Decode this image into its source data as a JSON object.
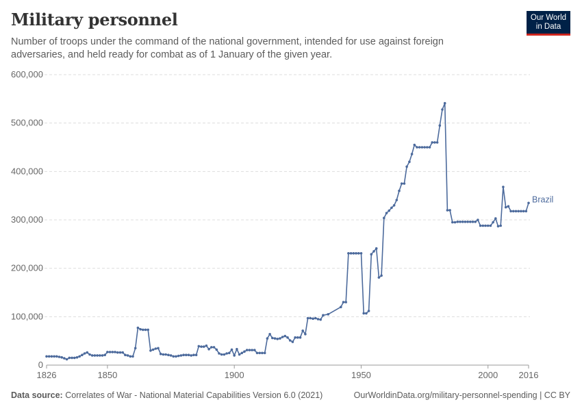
{
  "header": {
    "title": "Military personnel",
    "subtitle": "Number of troops under the command of the national government, intended for use against foreign adversaries, and held ready for combat as of 1 January of the given year."
  },
  "logo": {
    "line1": "Our World",
    "line2": "in Data"
  },
  "footer": {
    "source_label": "Data source:",
    "source_text": "Correlates of War - National Material Capabilities Version 6.0 (2021)",
    "right_text": "OurWorldinData.org/military-personnel-spending | CC BY"
  },
  "colors": {
    "series": "#4c6a9c",
    "grid": "#dddddd",
    "text": "#5b5b5b",
    "brand": "#002147",
    "brand_accent": "#ce261e"
  },
  "chart_data": {
    "type": "line",
    "title": "Military personnel",
    "xlabel": "",
    "ylabel": "",
    "xlim": [
      1826,
      2016
    ],
    "ylim": [
      0,
      600000
    ],
    "y_ticks": [
      0,
      100000,
      200000,
      300000,
      400000,
      500000,
      600000
    ],
    "y_tick_labels": [
      "0",
      "100,000",
      "200,000",
      "300,000",
      "400,000",
      "500,000",
      "600,000"
    ],
    "x_ticks": [
      1826,
      1850,
      1900,
      1950,
      2000,
      2016
    ],
    "x_tick_labels": [
      "1826",
      "1850",
      "1900",
      "1950",
      "2000",
      "2016"
    ],
    "grid": true,
    "legend": "end-of-line label",
    "series": [
      {
        "name": "Brazil",
        "points": [
          [
            1826,
            18000
          ],
          [
            1827,
            18000
          ],
          [
            1828,
            18000
          ],
          [
            1829,
            18000
          ],
          [
            1830,
            18000
          ],
          [
            1831,
            17000
          ],
          [
            1832,
            16000
          ],
          [
            1833,
            14000
          ],
          [
            1834,
            12000
          ],
          [
            1835,
            15000
          ],
          [
            1836,
            15000
          ],
          [
            1837,
            15000
          ],
          [
            1838,
            16000
          ],
          [
            1839,
            18000
          ],
          [
            1840,
            21000
          ],
          [
            1841,
            24000
          ],
          [
            1842,
            26000
          ],
          [
            1843,
            22000
          ],
          [
            1844,
            20000
          ],
          [
            1845,
            20000
          ],
          [
            1846,
            20000
          ],
          [
            1847,
            20000
          ],
          [
            1848,
            20000
          ],
          [
            1849,
            21000
          ],
          [
            1850,
            27000
          ],
          [
            1851,
            27000
          ],
          [
            1852,
            27000
          ],
          [
            1853,
            27000
          ],
          [
            1854,
            26000
          ],
          [
            1855,
            26000
          ],
          [
            1856,
            26000
          ],
          [
            1857,
            21000
          ],
          [
            1858,
            20000
          ],
          [
            1859,
            18000
          ],
          [
            1860,
            18000
          ],
          [
            1861,
            35000
          ],
          [
            1862,
            77000
          ],
          [
            1863,
            74000
          ],
          [
            1864,
            73000
          ],
          [
            1865,
            73000
          ],
          [
            1866,
            73000
          ],
          [
            1867,
            30000
          ],
          [
            1868,
            32000
          ],
          [
            1869,
            34000
          ],
          [
            1870,
            35000
          ],
          [
            1871,
            23000
          ],
          [
            1872,
            22000
          ],
          [
            1873,
            22000
          ],
          [
            1874,
            21000
          ],
          [
            1875,
            20000
          ],
          [
            1876,
            18000
          ],
          [
            1877,
            18000
          ],
          [
            1878,
            19000
          ],
          [
            1879,
            20000
          ],
          [
            1880,
            21000
          ],
          [
            1881,
            21000
          ],
          [
            1882,
            21000
          ],
          [
            1883,
            20000
          ],
          [
            1884,
            21000
          ],
          [
            1885,
            21000
          ],
          [
            1886,
            39000
          ],
          [
            1887,
            38000
          ],
          [
            1888,
            38000
          ],
          [
            1889,
            40000
          ],
          [
            1890,
            33000
          ],
          [
            1891,
            37000
          ],
          [
            1892,
            37000
          ],
          [
            1893,
            32000
          ],
          [
            1894,
            24000
          ],
          [
            1895,
            22000
          ],
          [
            1896,
            22000
          ],
          [
            1897,
            24000
          ],
          [
            1898,
            25000
          ],
          [
            1899,
            32000
          ],
          [
            1900,
            20000
          ],
          [
            1901,
            33000
          ],
          [
            1902,
            22000
          ],
          [
            1903,
            25000
          ],
          [
            1904,
            28000
          ],
          [
            1905,
            31000
          ],
          [
            1906,
            31000
          ],
          [
            1907,
            31000
          ],
          [
            1908,
            31000
          ],
          [
            1909,
            25000
          ],
          [
            1910,
            25000
          ],
          [
            1911,
            25000
          ],
          [
            1912,
            25000
          ],
          [
            1913,
            55000
          ],
          [
            1914,
            64000
          ],
          [
            1915,
            56000
          ],
          [
            1916,
            55000
          ],
          [
            1917,
            54000
          ],
          [
            1918,
            55000
          ],
          [
            1919,
            58000
          ],
          [
            1920,
            60000
          ],
          [
            1921,
            57000
          ],
          [
            1922,
            51000
          ],
          [
            1923,
            48000
          ],
          [
            1924,
            57000
          ],
          [
            1925,
            57000
          ],
          [
            1926,
            57000
          ],
          [
            1927,
            71000
          ],
          [
            1928,
            64000
          ],
          [
            1929,
            97000
          ],
          [
            1930,
            97000
          ],
          [
            1931,
            96000
          ],
          [
            1932,
            97000
          ],
          [
            1933,
            95000
          ],
          [
            1934,
            94000
          ],
          [
            1935,
            103000
          ],
          [
            1937,
            105000
          ],
          [
            1942,
            120000
          ],
          [
            1943,
            130000
          ],
          [
            1944,
            130000
          ],
          [
            1945,
            231000
          ],
          [
            1946,
            231000
          ],
          [
            1947,
            231000
          ],
          [
            1948,
            231000
          ],
          [
            1949,
            231000
          ],
          [
            1950,
            231000
          ],
          [
            1951,
            107000
          ],
          [
            1952,
            107000
          ],
          [
            1953,
            112000
          ],
          [
            1954,
            229000
          ],
          [
            1955,
            235000
          ],
          [
            1956,
            241000
          ],
          [
            1957,
            181000
          ],
          [
            1958,
            185000
          ],
          [
            1959,
            304000
          ],
          [
            1960,
            314000
          ],
          [
            1961,
            319000
          ],
          [
            1962,
            325000
          ],
          [
            1963,
            330000
          ],
          [
            1964,
            341000
          ],
          [
            1965,
            360000
          ],
          [
            1966,
            375000
          ],
          [
            1967,
            375000
          ],
          [
            1968,
            410000
          ],
          [
            1969,
            420000
          ],
          [
            1970,
            436000
          ],
          [
            1971,
            455000
          ],
          [
            1972,
            450000
          ],
          [
            1973,
            450000
          ],
          [
            1974,
            450000
          ],
          [
            1975,
            450000
          ],
          [
            1976,
            450000
          ],
          [
            1977,
            450000
          ],
          [
            1978,
            460000
          ],
          [
            1979,
            460000
          ],
          [
            1980,
            460000
          ],
          [
            1981,
            495000
          ],
          [
            1982,
            528000
          ],
          [
            1983,
            541000
          ],
          [
            1984,
            320000
          ],
          [
            1985,
            320000
          ],
          [
            1986,
            295000
          ],
          [
            1987,
            295000
          ],
          [
            1988,
            296000
          ],
          [
            1989,
            296000
          ],
          [
            1990,
            296000
          ],
          [
            1991,
            296000
          ],
          [
            1992,
            296000
          ],
          [
            1993,
            296000
          ],
          [
            1994,
            296000
          ],
          [
            1995,
            296000
          ],
          [
            1996,
            300000
          ],
          [
            1997,
            288000
          ],
          [
            1998,
            288000
          ],
          [
            1999,
            288000
          ],
          [
            2000,
            288000
          ],
          [
            2001,
            288000
          ],
          [
            2002,
            295000
          ],
          [
            2003,
            303000
          ],
          [
            2004,
            287000
          ],
          [
            2005,
            288000
          ],
          [
            2006,
            368000
          ],
          [
            2007,
            326000
          ],
          [
            2008,
            328000
          ],
          [
            2009,
            318000
          ],
          [
            2010,
            318000
          ],
          [
            2011,
            318000
          ],
          [
            2012,
            318000
          ],
          [
            2013,
            318000
          ],
          [
            2014,
            318000
          ],
          [
            2015,
            318000
          ],
          [
            2016,
            335000
          ]
        ]
      }
    ]
  }
}
